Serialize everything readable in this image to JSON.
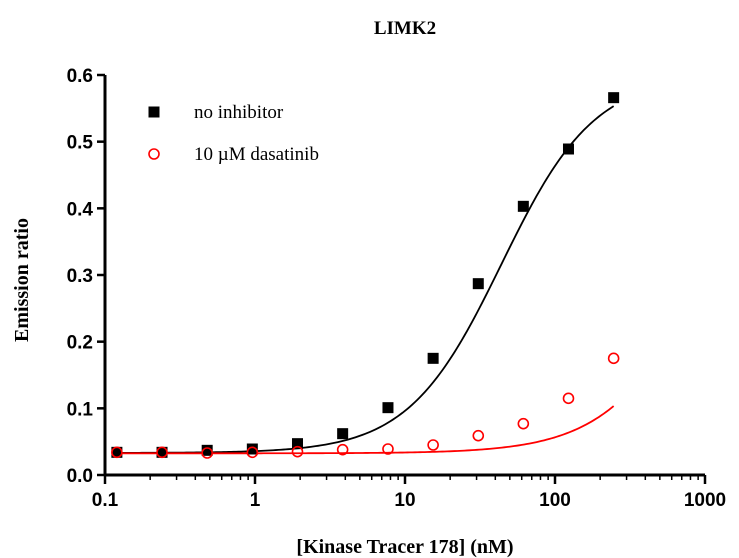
{
  "chart_data": {
    "type": "scatter",
    "title": "LIMK2",
    "xlabel": "[Kinase Tracer 178] (nM)",
    "ylabel": "Emission ratio",
    "xscale": "log",
    "xlim": [
      0.1,
      1000
    ],
    "ylim": [
      0,
      0.6
    ],
    "x_ticks": [
      "0.1",
      "1",
      "10",
      "100",
      "1000"
    ],
    "y_ticks": [
      "0.0",
      "0.1",
      "0.2",
      "0.3",
      "0.4",
      "0.5",
      "0.6"
    ],
    "legend_position": "top-left",
    "grid": false,
    "series": [
      {
        "name": "no inhibitor",
        "marker": "filled-square",
        "color": "#000000",
        "x": [
          0.12,
          0.24,
          0.48,
          0.96,
          1.92,
          3.84,
          7.7,
          15.4,
          30.8,
          61.5,
          123,
          246
        ],
        "y": [
          0.034,
          0.034,
          0.037,
          0.039,
          0.047,
          0.062,
          0.101,
          0.175,
          0.287,
          0.403,
          0.489,
          0.566
        ],
        "fit": {
          "bottom": 0.033,
          "top": 0.6,
          "ec50": 44,
          "hill": 1.4
        }
      },
      {
        "name": "10 µM dasatinib",
        "marker": "open-circle",
        "color": "#ff0000",
        "x": [
          0.12,
          0.24,
          0.48,
          0.96,
          1.92,
          3.84,
          7.7,
          15.4,
          30.8,
          61.5,
          123,
          246
        ],
        "y": [
          0.034,
          0.034,
          0.033,
          0.034,
          0.035,
          0.038,
          0.039,
          0.045,
          0.059,
          0.077,
          0.115,
          0.175
        ],
        "fit": {
          "bottom": 0.0325,
          "top": 0.6,
          "ec50": 1100,
          "hill": 1.3
        }
      }
    ]
  }
}
